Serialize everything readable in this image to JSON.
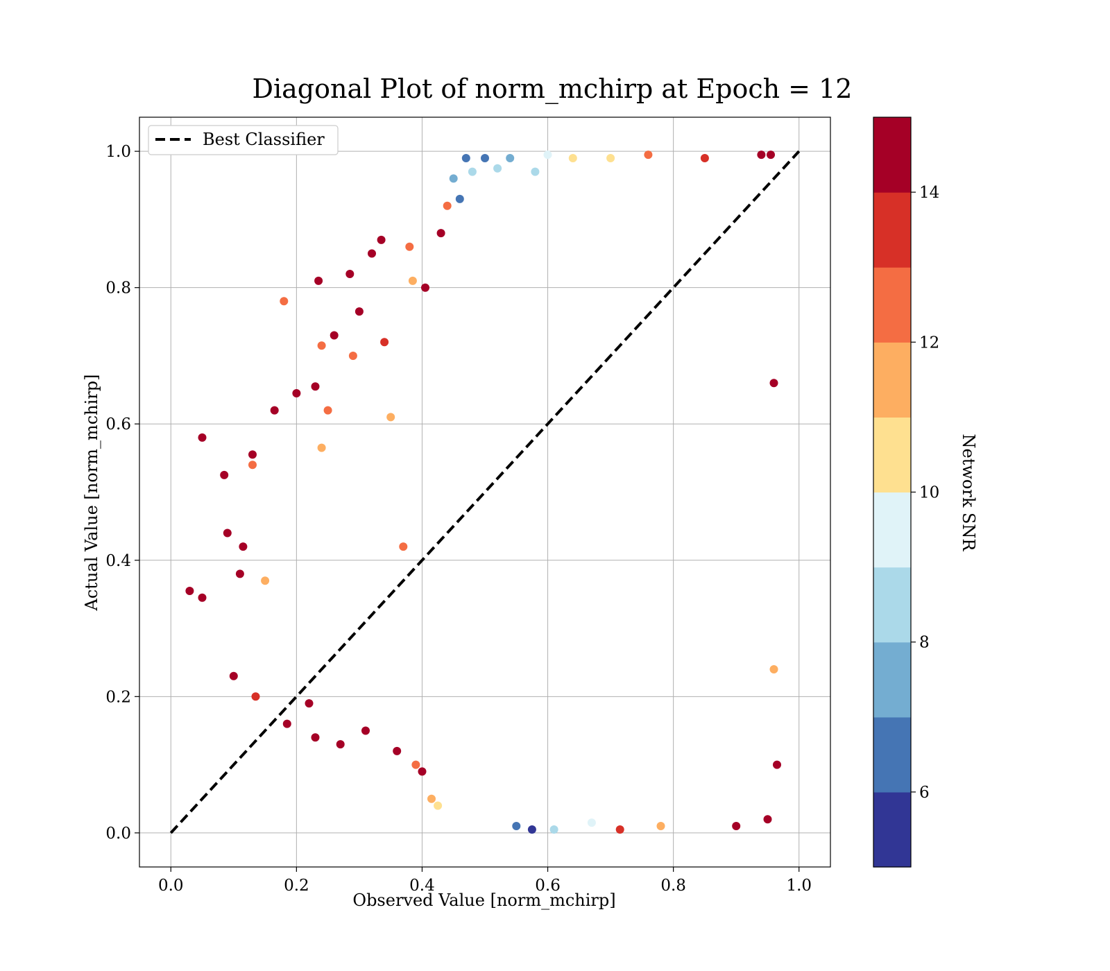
{
  "chart_data": {
    "type": "scatter",
    "title": "Diagonal Plot of norm_mchirp at Epoch = 12",
    "xlabel": "Observed Value [norm_mchirp]",
    "ylabel": "Actual Value [norm_mchirp]",
    "xlim": [
      -0.05,
      1.05
    ],
    "ylim": [
      -0.05,
      1.05
    ],
    "xticks": [
      0.0,
      0.2,
      0.4,
      0.6,
      0.8,
      1.0
    ],
    "xtick_labels": [
      "0.0",
      "0.2",
      "0.4",
      "0.6",
      "0.8",
      "1.0"
    ],
    "yticks": [
      0.0,
      0.2,
      0.4,
      0.6,
      0.8,
      1.0
    ],
    "ytick_labels": [
      "0.0",
      "0.2",
      "0.4",
      "0.6",
      "0.8",
      "1.0"
    ],
    "grid": true,
    "legend": {
      "placement": "top-left",
      "entries": [
        {
          "label": "Best Classifier",
          "style": "dashed",
          "color": "#000000"
        }
      ]
    },
    "reference_line": {
      "name": "Best Classifier",
      "x": [
        0.0,
        1.0
      ],
      "y": [
        0.0,
        1.0
      ]
    },
    "colorbar": {
      "label": "Network SNR",
      "range": [
        5,
        15
      ],
      "ticks": [
        6,
        8,
        10,
        12,
        14
      ],
      "tick_labels": [
        "6",
        "8",
        "10",
        "12",
        "14"
      ],
      "colormap": "RdYlBu_r",
      "colors": [
        "#313695",
        "#4575b4",
        "#74add1",
        "#abd9e9",
        "#e0f3f8",
        "#fee090",
        "#fdae61",
        "#f46d43",
        "#d73027",
        "#a50026"
      ]
    },
    "series": [
      {
        "description": "approximate representative sample of dense predictions; each point [observed, actual, network_snr]",
        "points": [
          [
            0.03,
            0.355,
            14.8
          ],
          [
            0.05,
            0.58,
            14.8
          ],
          [
            0.05,
            0.345,
            14.8
          ],
          [
            0.085,
            0.525,
            14.8
          ],
          [
            0.09,
            0.44,
            14.8
          ],
          [
            0.1,
            0.23,
            14.8
          ],
          [
            0.11,
            0.38,
            14.8
          ],
          [
            0.115,
            0.42,
            14.8
          ],
          [
            0.13,
            0.555,
            14.8
          ],
          [
            0.13,
            0.54,
            12.5
          ],
          [
            0.135,
            0.2,
            13.2
          ],
          [
            0.15,
            0.37,
            11.5
          ],
          [
            0.165,
            0.62,
            14.8
          ],
          [
            0.18,
            0.78,
            12.4
          ],
          [
            0.185,
            0.16,
            14.8
          ],
          [
            0.2,
            0.645,
            14.8
          ],
          [
            0.22,
            0.19,
            14.8
          ],
          [
            0.23,
            0.655,
            14.8
          ],
          [
            0.24,
            0.715,
            12.2
          ],
          [
            0.24,
            0.565,
            11.5
          ],
          [
            0.23,
            0.14,
            14.8
          ],
          [
            0.235,
            0.81,
            14.8
          ],
          [
            0.25,
            0.62,
            12.9
          ],
          [
            0.26,
            0.73,
            14.8
          ],
          [
            0.27,
            0.13,
            14.8
          ],
          [
            0.285,
            0.82,
            14.8
          ],
          [
            0.29,
            0.7,
            12.4
          ],
          [
            0.3,
            0.765,
            14.8
          ],
          [
            0.31,
            0.15,
            14.8
          ],
          [
            0.32,
            0.85,
            14.8
          ],
          [
            0.335,
            0.87,
            14.8
          ],
          [
            0.34,
            0.72,
            13.2
          ],
          [
            0.35,
            0.61,
            11.5
          ],
          [
            0.36,
            0.12,
            14.8
          ],
          [
            0.37,
            0.42,
            12.6
          ],
          [
            0.38,
            0.86,
            12.3
          ],
          [
            0.385,
            0.81,
            11.8
          ],
          [
            0.39,
            0.1,
            12.8
          ],
          [
            0.4,
            0.09,
            14.8
          ],
          [
            0.405,
            0.8,
            14.8
          ],
          [
            0.415,
            0.05,
            11.5
          ],
          [
            0.425,
            0.04,
            10.6
          ],
          [
            0.43,
            0.88,
            14.8
          ],
          [
            0.44,
            0.92,
            12.7
          ],
          [
            0.45,
            0.96,
            7.5
          ],
          [
            0.46,
            0.93,
            6.2
          ],
          [
            0.47,
            0.99,
            6.0
          ],
          [
            0.48,
            0.97,
            8.2
          ],
          [
            0.5,
            0.99,
            6.6
          ],
          [
            0.52,
            0.975,
            8.5
          ],
          [
            0.54,
            0.99,
            7.0
          ],
          [
            0.55,
            0.01,
            6.4
          ],
          [
            0.575,
            0.005,
            5.7
          ],
          [
            0.58,
            0.97,
            8.8
          ],
          [
            0.6,
            0.995,
            9.8
          ],
          [
            0.61,
            0.005,
            8.6
          ],
          [
            0.64,
            0.99,
            10.5
          ],
          [
            0.67,
            0.015,
            9.4
          ],
          [
            0.7,
            0.99,
            10.3
          ],
          [
            0.715,
            0.005,
            13.4
          ],
          [
            0.76,
            0.995,
            12.2
          ],
          [
            0.78,
            0.01,
            11.6
          ],
          [
            0.85,
            0.99,
            13.6
          ],
          [
            0.94,
            0.995,
            14.8
          ],
          [
            0.955,
            0.995,
            14.8
          ],
          [
            0.96,
            0.66,
            14.8
          ],
          [
            0.965,
            0.1,
            14.8
          ],
          [
            0.96,
            0.24,
            11.4
          ],
          [
            0.95,
            0.02,
            14.8
          ],
          [
            0.9,
            0.01,
            14.8
          ]
        ]
      }
    ]
  }
}
